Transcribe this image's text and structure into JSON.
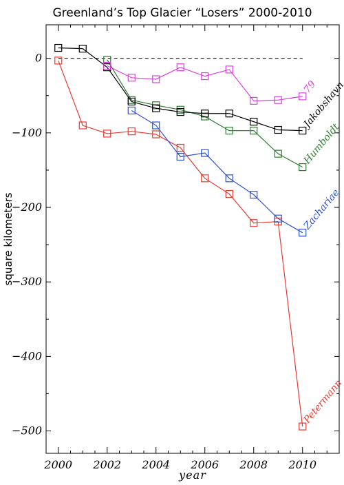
{
  "chart_data": {
    "type": "line",
    "title": "Greenland’s Top Glacier “Losers” 2000-2010",
    "xlabel": "year",
    "ylabel": "square kilometers",
    "xlim": [
      1999.5,
      2011.5
    ],
    "ylim": [
      -530,
      45
    ],
    "xticks": [
      2000,
      2002,
      2004,
      2006,
      2008,
      2010
    ],
    "xtick_labels": [
      "2000",
      "2002",
      "2004",
      "2006",
      "2008",
      "2010"
    ],
    "yticks": [
      0,
      -100,
      -200,
      -300,
      -400,
      -500
    ],
    "ytick_labels": [
      "0",
      "−100",
      "−200",
      "−300",
      "−400",
      "−500"
    ],
    "zero_line": 0,
    "grid": false,
    "legend": "labels at series ends",
    "series": [
      {
        "name": "Petermann",
        "color": "#e8392e",
        "x": [
          2000,
          2001,
          2002,
          2003,
          2004,
          2005,
          2006,
          2007,
          2008,
          2009,
          2010
        ],
        "y": [
          -3,
          -90,
          -101,
          -98,
          -102,
          -120,
          -161,
          -182,
          -221,
          -219,
          -494
        ]
      },
      {
        "name": "Zachariae",
        "color": "#2a4fd6",
        "x": [
          2003,
          2004,
          2005,
          2006,
          2007,
          2008,
          2009,
          2010
        ],
        "y": [
          -70,
          -90,
          -132,
          -127,
          -161,
          -183,
          -215,
          -234
        ]
      },
      {
        "name": "Humboldt",
        "color": "#2e7d32",
        "x": [
          2002,
          2003,
          2004,
          2005,
          2006,
          2007,
          2008,
          2009,
          2010
        ],
        "y": [
          -2,
          -56,
          -63,
          -69,
          -78,
          -97,
          -97,
          -128,
          -146
        ]
      },
      {
        "name": "Jakobshavn",
        "color": "#000000",
        "x": [
          2000,
          2001,
          2002,
          2003,
          2004,
          2005,
          2006,
          2007,
          2008,
          2009,
          2010
        ],
        "y": [
          14,
          13,
          -12,
          -58,
          -67,
          -72,
          -74,
          -74,
          -85,
          -96,
          -97
        ]
      },
      {
        "name": "79",
        "color": "#e040e0",
        "x": [
          2002,
          2003,
          2004,
          2005,
          2006,
          2007,
          2008,
          2009,
          2010
        ],
        "y": [
          -10,
          -26,
          -28,
          -12,
          -24,
          -15,
          -57,
          -56,
          -51
        ]
      }
    ]
  }
}
